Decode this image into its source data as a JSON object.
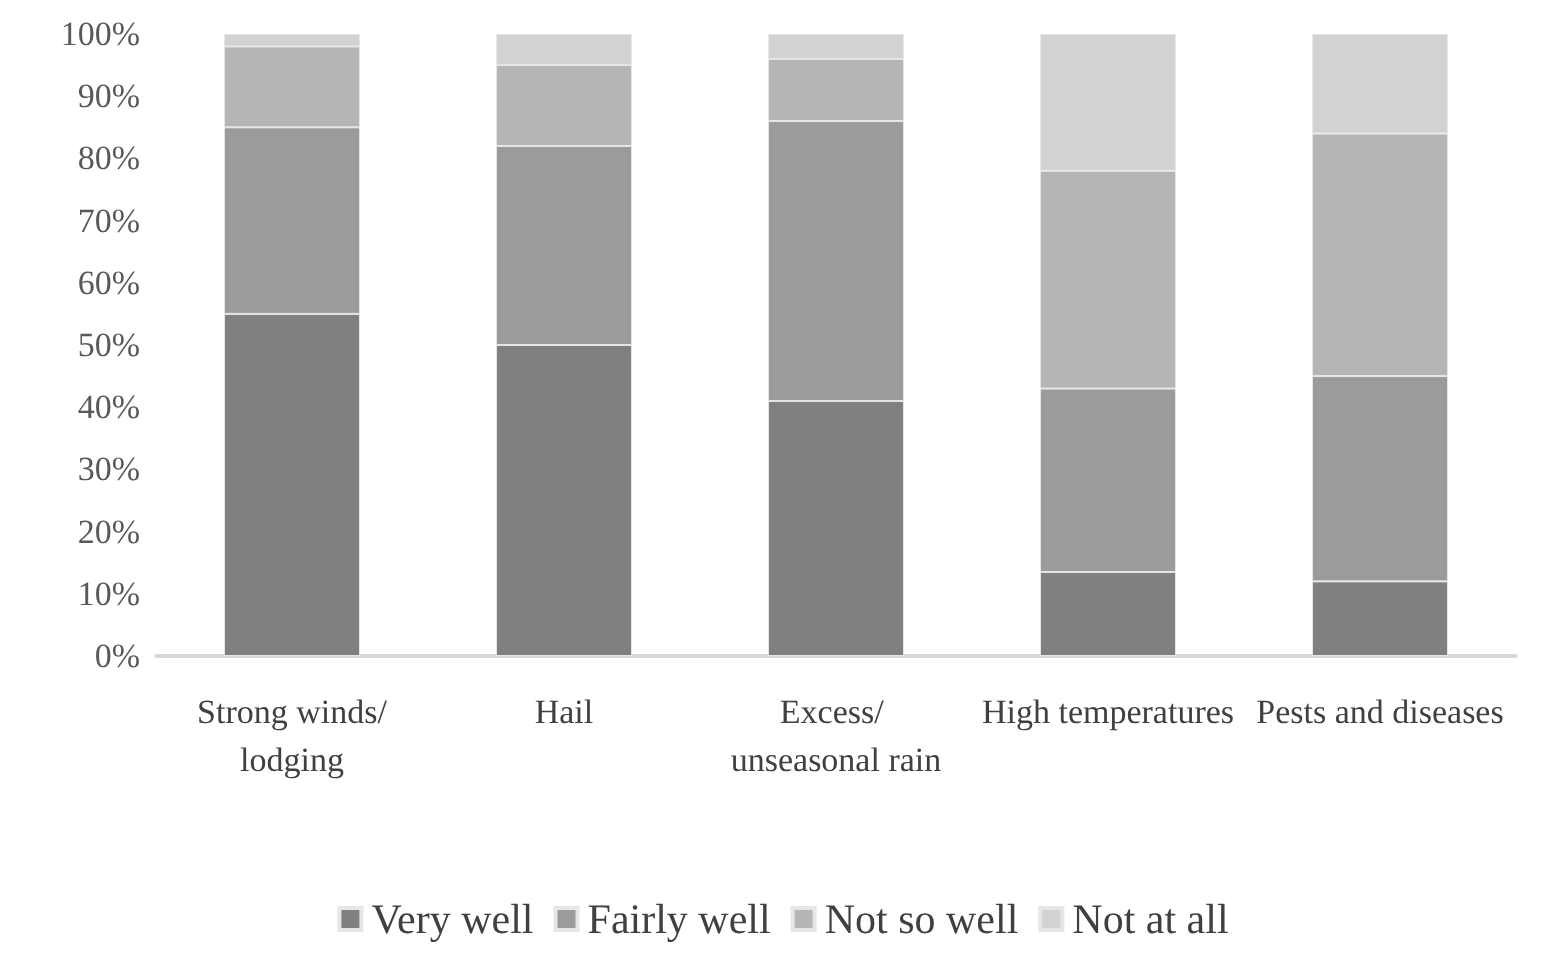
{
  "chart_data": {
    "type": "bar",
    "stacked": true,
    "categories": [
      "Strong winds/lodging",
      "Hail",
      "Excess/ unseasonal rain",
      "High temperatures",
      "Pests and diseases"
    ],
    "series": [
      {
        "name": "Very well",
        "color": "#808080",
        "values": [
          55,
          50,
          41,
          13.5,
          12
        ]
      },
      {
        "name": "Fairly well",
        "color": "#9b9b9b",
        "values": [
          30,
          32,
          45,
          29.5,
          33
        ]
      },
      {
        "name": "Not so well",
        "color": "#b5b5b5",
        "values": [
          13,
          13,
          10,
          35,
          39
        ]
      },
      {
        "name": "Not at all",
        "color": "#d2d2d2",
        "values": [
          2,
          5,
          4,
          22,
          16
        ]
      }
    ],
    "ylim": [
      0,
      100
    ],
    "yticks": [
      {
        "value": 0,
        "label": "0%"
      },
      {
        "value": 10,
        "label": "10%"
      },
      {
        "value": 20,
        "label": "20%"
      },
      {
        "value": 30,
        "label": "30%"
      },
      {
        "value": 40,
        "label": "40%"
      },
      {
        "value": 50,
        "label": "50%"
      },
      {
        "value": 60,
        "label": "60%"
      },
      {
        "value": 70,
        "label": "70%"
      },
      {
        "value": 80,
        "label": "80%"
      },
      {
        "value": 90,
        "label": "90%"
      },
      {
        "value": 100,
        "label": "100%"
      }
    ],
    "grid": false,
    "legend": "bottom"
  }
}
